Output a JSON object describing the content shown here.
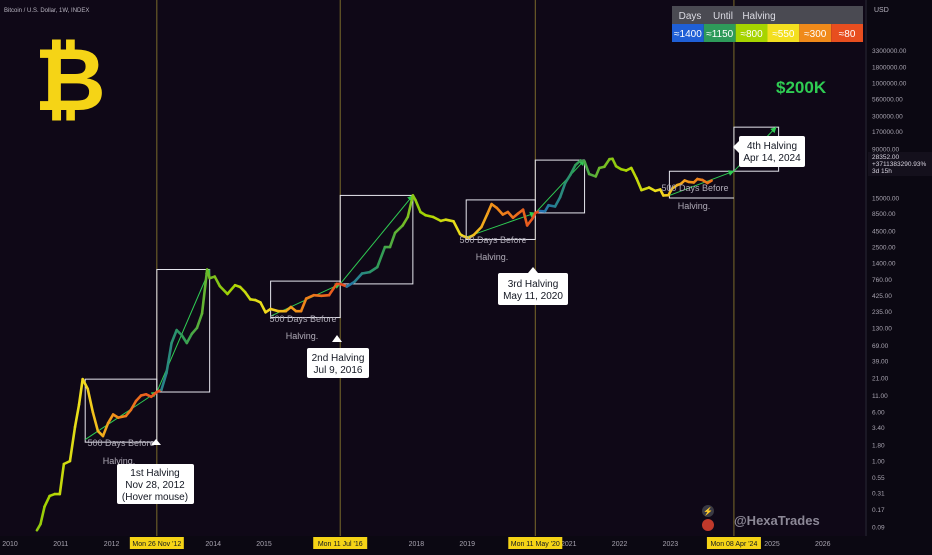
{
  "header": {
    "symbol_title": "Bitcoin / U.S. Dollar, 1W, INDEX"
  },
  "legend": {
    "title_parts": [
      "Days",
      "Until",
      "Halving"
    ],
    "items": [
      {
        "label": "≈1400",
        "color": "#1f5fd6"
      },
      {
        "label": "≈1150",
        "color": "#2e9a5a"
      },
      {
        "label": "≈800",
        "color": "#a6d400"
      },
      {
        "label": "≈550",
        "color": "#f3df1f"
      },
      {
        "label": "≈300",
        "color": "#f08a1a"
      },
      {
        "label": "≈80",
        "color": "#e84e1f"
      }
    ]
  },
  "logo": {
    "glyph": "₿",
    "color": "#f5d416",
    "icon": "bitcoin-logo"
  },
  "price_axis": {
    "currency": "USD",
    "current_price": "28352.00",
    "current_change": "+3711383290.93%",
    "countdown": "3d 15h"
  },
  "chart_data": {
    "type": "line",
    "title": "Bitcoin / U.S. Dollar, 1W, INDEX",
    "y_scale": "log",
    "ylim": [
      0.07,
      5500000
    ],
    "xlim": [
      2010.0,
      2027.0
    ],
    "y_ticks": [
      "3300000.00",
      "1800000.00",
      "1000000.00",
      "560000.00",
      "300000.00",
      "170000.00",
      "90000.00",
      "50000.00",
      "28352.00",
      "15000.00",
      "8500.00",
      "4500.00",
      "2500.00",
      "1400.00",
      "760.00",
      "425.00",
      "235.00",
      "130.00",
      "69.00",
      "39.00",
      "21.00",
      "11.00",
      "6.00",
      "3.40",
      "1.80",
      "1.00",
      "0.55",
      "0.31",
      "0.17",
      "0.09"
    ],
    "x_ticks": [
      {
        "label": "2010",
        "x": 2010
      },
      {
        "label": "2011",
        "x": 2011
      },
      {
        "label": "2012",
        "x": 2012
      },
      {
        "label": "2014",
        "x": 2014
      },
      {
        "label": "2015",
        "x": 2015
      },
      {
        "label": "2018",
        "x": 2018
      },
      {
        "label": "2019",
        "x": 2019
      },
      {
        "label": "2021",
        "x": 2021
      },
      {
        "label": "2022",
        "x": 2022
      },
      {
        "label": "2023",
        "x": 2023
      },
      {
        "label": "2025",
        "x": 2025
      },
      {
        "label": "2026",
        "x": 2026
      }
    ],
    "halving_markers": [
      {
        "x": 2012.91,
        "label": "Mon 26 Nov '12"
      },
      {
        "x": 2016.52,
        "label": "Mon 11 Jul '16"
      },
      {
        "x": 2020.36,
        "label": "Mon 11 May '20"
      },
      {
        "x": 2024.27,
        "label": "Mon 08 Apr '24"
      }
    ],
    "price_series": [
      [
        2010.55,
        0.08
      ],
      [
        2010.62,
        0.1
      ],
      [
        2010.7,
        0.19
      ],
      [
        2010.8,
        0.28
      ],
      [
        2010.9,
        0.3
      ],
      [
        2011.0,
        0.3
      ],
      [
        2011.08,
        0.9
      ],
      [
        2011.2,
        1.0
      ],
      [
        2011.3,
        3.5
      ],
      [
        2011.38,
        8
      ],
      [
        2011.45,
        20
      ],
      [
        2011.55,
        14
      ],
      [
        2011.65,
        6
      ],
      [
        2011.75,
        3
      ],
      [
        2011.85,
        2.5
      ],
      [
        2011.95,
        4
      ],
      [
        2012.05,
        5.5
      ],
      [
        2012.15,
        4.9
      ],
      [
        2012.3,
        5.2
      ],
      [
        2012.4,
        6.5
      ],
      [
        2012.5,
        9
      ],
      [
        2012.6,
        11
      ],
      [
        2012.7,
        11.5
      ],
      [
        2012.8,
        10.5
      ],
      [
        2012.91,
        12.5
      ],
      [
        2013.0,
        13.5
      ],
      [
        2013.1,
        25
      ],
      [
        2013.2,
        75
      ],
      [
        2013.3,
        120
      ],
      [
        2013.4,
        100
      ],
      [
        2013.5,
        75
      ],
      [
        2013.6,
        105
      ],
      [
        2013.7,
        130
      ],
      [
        2013.8,
        220
      ],
      [
        2013.9,
        1100
      ],
      [
        2013.95,
        800
      ],
      [
        2014.05,
        850
      ],
      [
        2014.15,
        600
      ],
      [
        2014.3,
        450
      ],
      [
        2014.45,
        620
      ],
      [
        2014.55,
        580
      ],
      [
        2014.65,
        480
      ],
      [
        2014.75,
        370
      ],
      [
        2014.85,
        360
      ],
      [
        2014.95,
        330
      ],
      [
        2015.05,
        230
      ],
      [
        2015.15,
        260
      ],
      [
        2015.3,
        240
      ],
      [
        2015.45,
        240
      ],
      [
        2015.55,
        280
      ],
      [
        2015.65,
        240
      ],
      [
        2015.75,
        240
      ],
      [
        2015.85,
        380
      ],
      [
        2016.0,
        430
      ],
      [
        2016.15,
        420
      ],
      [
        2016.3,
        430
      ],
      [
        2016.45,
        650
      ],
      [
        2016.52,
        650
      ],
      [
        2016.65,
        590
      ],
      [
        2016.8,
        700
      ],
      [
        2016.95,
        950
      ],
      [
        2017.1,
        1000
      ],
      [
        2017.25,
        1200
      ],
      [
        2017.4,
        2500
      ],
      [
        2017.5,
        2500
      ],
      [
        2017.6,
        4200
      ],
      [
        2017.75,
        5500
      ],
      [
        2017.85,
        7500
      ],
      [
        2017.95,
        16500
      ],
      [
        2018.0,
        14000
      ],
      [
        2018.1,
        9000
      ],
      [
        2018.2,
        8000
      ],
      [
        2018.35,
        7500
      ],
      [
        2018.5,
        6500
      ],
      [
        2018.6,
        6800
      ],
      [
        2018.75,
        6400
      ],
      [
        2018.88,
        4000
      ],
      [
        2018.95,
        3700
      ],
      [
        2019.05,
        3500
      ],
      [
        2019.15,
        3900
      ],
      [
        2019.3,
        5200
      ],
      [
        2019.42,
        8500
      ],
      [
        2019.5,
        12000
      ],
      [
        2019.6,
        10500
      ],
      [
        2019.72,
        8200
      ],
      [
        2019.82,
        9000
      ],
      [
        2019.92,
        7300
      ],
      [
        2020.02,
        8500
      ],
      [
        2020.12,
        9800
      ],
      [
        2020.2,
        5500
      ],
      [
        2020.3,
        7000
      ],
      [
        2020.36,
        8700
      ],
      [
        2020.45,
        9300
      ],
      [
        2020.55,
        9200
      ],
      [
        2020.62,
        11500
      ],
      [
        2020.75,
        11000
      ],
      [
        2020.85,
        15500
      ],
      [
        2020.95,
        26000
      ],
      [
        2021.05,
        35000
      ],
      [
        2021.15,
        50000
      ],
      [
        2021.25,
        59000
      ],
      [
        2021.33,
        57000
      ],
      [
        2021.42,
        36000
      ],
      [
        2021.55,
        33000
      ],
      [
        2021.62,
        45000
      ],
      [
        2021.72,
        47000
      ],
      [
        2021.82,
        62000
      ],
      [
        2021.88,
        63000
      ],
      [
        2021.95,
        48000
      ],
      [
        2022.05,
        43000
      ],
      [
        2022.15,
        41000
      ],
      [
        2022.25,
        45000
      ],
      [
        2022.35,
        31000
      ],
      [
        2022.45,
        20000
      ],
      [
        2022.6,
        22000
      ],
      [
        2022.72,
        19500
      ],
      [
        2022.82,
        20500
      ],
      [
        2022.88,
        16500
      ],
      [
        2022.98,
        16600
      ],
      [
        2023.05,
        21000
      ],
      [
        2023.15,
        24000
      ],
      [
        2023.22,
        25000
      ],
      [
        2023.3,
        28500
      ],
      [
        2023.38,
        27000
      ],
      [
        2023.48,
        26500
      ],
      [
        2023.55,
        30000
      ],
      [
        2023.65,
        29000
      ],
      [
        2023.75,
        26000
      ],
      [
        2023.83,
        28352
      ]
    ],
    "pre_halving_boxes": [
      {
        "x_from": 2011.5,
        "x_to": 2012.91,
        "y_from": 2.0,
        "y_to": 20
      },
      {
        "x_from": 2015.15,
        "x_to": 2016.52,
        "y_from": 190,
        "y_to": 720
      },
      {
        "x_from": 2019.0,
        "x_to": 2020.36,
        "y_from": 3300,
        "y_to": 14000
      }
    ],
    "pre_halving_box_open": {
      "x_from": 2023.0,
      "x_to": 2024.27,
      "y_from": 15000,
      "y_to": 40000
    },
    "post_halving_boxes": [
      {
        "x_from": 2012.91,
        "x_to": 2013.95,
        "y_from": 12.5,
        "y_to": 1100
      },
      {
        "x_from": 2016.52,
        "x_to": 2017.95,
        "y_from": 650,
        "y_to": 16500
      },
      {
        "x_from": 2020.36,
        "x_to": 2021.33,
        "y_from": 8700,
        "y_to": 60000
      },
      {
        "x_from": 2024.27,
        "x_to": 2025.15,
        "y_from": 40000,
        "y_to": 200000
      }
    ],
    "projection_arrows": [
      {
        "from": [
          2011.5,
          2.2
        ],
        "to": [
          2012.91,
          12.5
        ]
      },
      {
        "from": [
          2012.91,
          12.5
        ],
        "to": [
          2013.95,
          1100
        ]
      },
      {
        "from": [
          2015.15,
          200
        ],
        "to": [
          2016.52,
          650
        ]
      },
      {
        "from": [
          2016.52,
          650
        ],
        "to": [
          2017.95,
          16500
        ]
      },
      {
        "from": [
          2019.0,
          3600
        ],
        "to": [
          2020.36,
          8700
        ]
      },
      {
        "from": [
          2020.36,
          8700
        ],
        "to": [
          2021.33,
          60000
        ]
      },
      {
        "from": [
          2023.0,
          16500
        ],
        "to": [
          2024.27,
          40000
        ]
      },
      {
        "from": [
          2024.27,
          40000
        ],
        "to": [
          2025.1,
          200000
        ]
      }
    ],
    "annotations": {
      "target_label": "$200K",
      "box_caption": [
        "500 Days Before",
        "Halving."
      ],
      "halvings": [
        {
          "lines": [
            "1st Halving",
            "Nov 28, 2012",
            "(Hover mouse)"
          ]
        },
        {
          "lines": [
            "2nd Halving",
            "Jul 9, 2016"
          ]
        },
        {
          "lines": [
            "3rd Halving",
            "May 11, 2020"
          ]
        },
        {
          "lines": [
            "4th Halving",
            "Apr 14, 2024"
          ]
        }
      ]
    },
    "watermark": "@HexaTrades"
  }
}
